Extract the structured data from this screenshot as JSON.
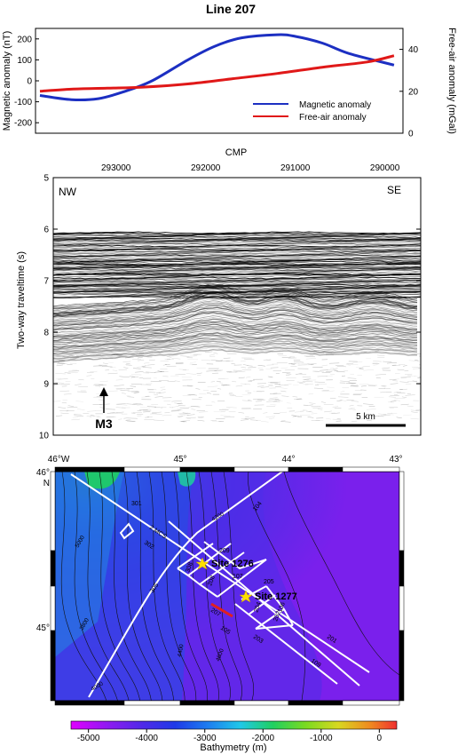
{
  "title": "Line 207",
  "anomaly_panel": {
    "left_axis_label": "Magnetic anomaly (nT)",
    "right_axis_label": "Free-air anomaly (mGal)",
    "legend": [
      "Magnetic anomaly",
      "Free-air anomaly"
    ],
    "colors": {
      "magnetic": "#1c2fc2",
      "free_air": "#e01818"
    }
  },
  "seismic_panel": {
    "cmp_label": "CMP",
    "y_label": "Two-way traveltime (s)",
    "left_dir": "NW",
    "right_dir": "SE",
    "feature": "M3",
    "scale_bar": "5 km"
  },
  "map_panel": {
    "sites": [
      "Site 1276",
      "Site 1277"
    ],
    "line_labels": [
      "301",
      "2 MCS",
      "302",
      "305",
      "209",
      "107",
      "106",
      "205",
      "105",
      "204",
      "202",
      "203",
      "201",
      "109",
      "104",
      "208",
      "308",
      "207"
    ],
    "contour_labels": [
      "5000",
      "4200",
      "3800",
      "4000",
      "4400",
      "4600"
    ],
    "lon_labels": [
      "46°W",
      "45°",
      "44°",
      "43°"
    ],
    "lat_labels": [
      "46°",
      "N",
      "45°"
    ]
  },
  "colorbar": {
    "label": "Bathymetry (m)",
    "ticks": [
      "-5000",
      "-4000",
      "-3000",
      "-2000",
      "-1000",
      "0"
    ]
  },
  "chart_data": [
    {
      "type": "line",
      "title": "Line 207",
      "xlabel": "CMP",
      "x_ticks": [
        "293000",
        "292000",
        "291000",
        "290000"
      ],
      "x_range": [
        293700,
        289600
      ],
      "ylabel": "Magnetic anomaly (nT)",
      "ylim": [
        -250,
        250
      ],
      "y_ticks": [
        "200",
        "100",
        "0",
        "-100",
        "-200"
      ],
      "y2label": "Free-air anomaly (mGal)",
      "y2lim": [
        0,
        50
      ],
      "y2_ticks": [
        "40",
        "20",
        "0"
      ],
      "legend_position": "lower-right",
      "series": [
        {
          "name": "Magnetic anomaly",
          "axis": "left",
          "x": [
            293650,
            293300,
            293000,
            292700,
            292400,
            292000,
            291700,
            291400,
            291000,
            290800,
            290500,
            290200,
            289700
          ],
          "y": [
            -70,
            -90,
            -85,
            -50,
            0,
            100,
            165,
            205,
            220,
            212,
            180,
            130,
            75
          ]
        },
        {
          "name": "Free-air anomaly",
          "axis": "right",
          "x": [
            293650,
            293300,
            292900,
            292500,
            292000,
            291500,
            291000,
            290500,
            290000,
            289700
          ],
          "y": [
            20.0,
            21.0,
            21.5,
            22.0,
            23.5,
            26.0,
            28.5,
            31.5,
            34.0,
            37.0
          ]
        }
      ]
    },
    {
      "type": "heatmap",
      "description_axes": {
        "xlabel": "CMP",
        "ylabel": "Two-way traveltime (s)"
      },
      "x_ticks": [
        "293000",
        "292000",
        "291000",
        "290000"
      ],
      "ylim": [
        10,
        5
      ],
      "y_ticks": [
        "5",
        "6",
        "7",
        "8",
        "9",
        "10"
      ]
    }
  ]
}
